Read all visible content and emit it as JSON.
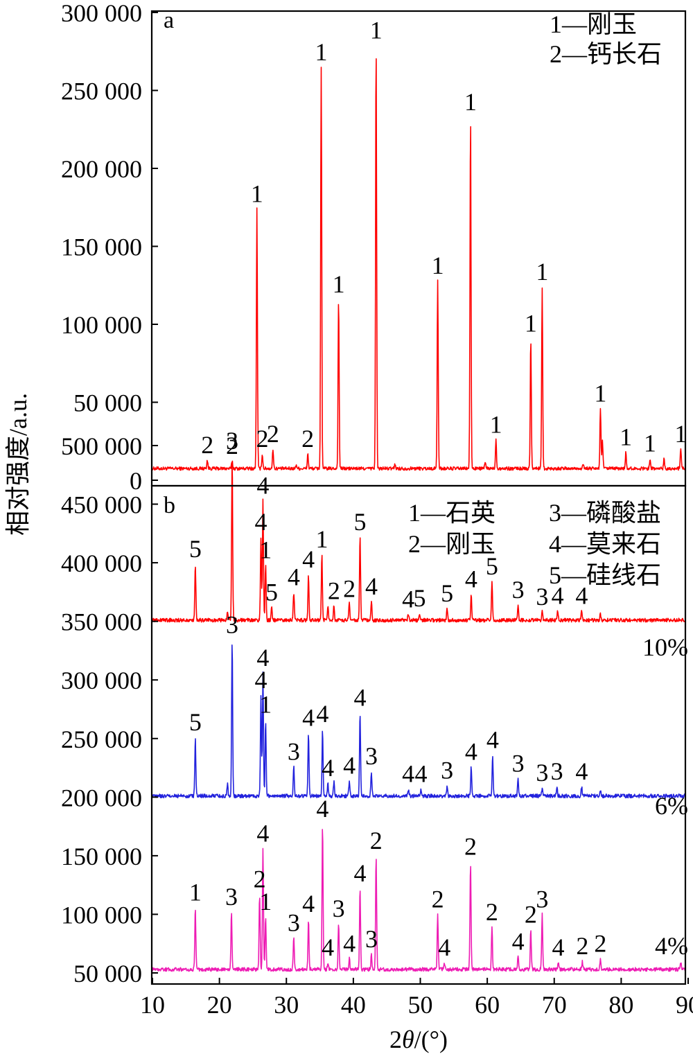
{
  "chart_data": [
    {
      "panel": "a",
      "type": "line",
      "xlim": [
        10,
        90
      ],
      "ylim": [
        0,
        300000
      ],
      "yticks": [
        0,
        50000,
        100000,
        150000,
        200000,
        250000,
        300000
      ],
      "ytick_labels": [
        "0",
        "50 000",
        "100 000",
        "150 000",
        "200 000",
        "250 000",
        "300 000"
      ],
      "legend": [
        "1—刚玉",
        "2—钙长石"
      ],
      "legend_position": "top-right",
      "series": [
        {
          "color": "#ff0000",
          "baseline": 7500,
          "peaks": [
            {
              "x": 18.2,
              "y": 13000,
              "label": "2"
            },
            {
              "x": 21.9,
              "y": 12500,
              "label": "2"
            },
            {
              "x": 25.6,
              "y": 174000,
              "label": "1"
            },
            {
              "x": 26.4,
              "y": 17000,
              "label": "2"
            },
            {
              "x": 28.0,
              "y": 20000,
              "label": "2"
            },
            {
              "x": 31.5,
              "y": 10000,
              "label": ""
            },
            {
              "x": 33.2,
              "y": 17000,
              "label": "2"
            },
            {
              "x": 35.2,
              "y": 265000,
              "label": "1"
            },
            {
              "x": 37.8,
              "y": 116000,
              "label": "1"
            },
            {
              "x": 43.4,
              "y": 279000,
              "label": "1"
            },
            {
              "x": 46.2,
              "y": 10500,
              "label": ""
            },
            {
              "x": 52.6,
              "y": 128000,
              "label": "1"
            },
            {
              "x": 57.5,
              "y": 233000,
              "label": "1"
            },
            {
              "x": 59.7,
              "y": 12000,
              "label": ""
            },
            {
              "x": 61.3,
              "y": 26000,
              "label": "1"
            },
            {
              "x": 66.5,
              "y": 91000,
              "label": "1"
            },
            {
              "x": 68.2,
              "y": 124000,
              "label": "1"
            },
            {
              "x": 74.3,
              "y": 11000,
              "label": ""
            },
            {
              "x": 76.9,
              "y": 46000,
              "label": "1"
            },
            {
              "x": 77.2,
              "y": 25000,
              "label": ""
            },
            {
              "x": 80.7,
              "y": 18000,
              "label": "1"
            },
            {
              "x": 84.3,
              "y": 14000,
              "label": "1"
            },
            {
              "x": 86.4,
              "y": 14000,
              "label": ""
            },
            {
              "x": 88.9,
              "y": 20000,
              "label": "1"
            }
          ]
        }
      ]
    },
    {
      "panel": "b",
      "type": "line",
      "xlim": [
        10,
        90
      ],
      "ylim": [
        50000,
        500000
      ],
      "yticks": [
        50000,
        100000,
        150000,
        200000,
        250000,
        300000,
        350000,
        400000,
        450000,
        500000
      ],
      "ytick_labels": [
        "50 000",
        "100 000",
        "150 000",
        "200 000",
        "250 000",
        "300 000",
        "350 000",
        "400 000",
        "450 000",
        "500 000"
      ],
      "xticks": [
        10,
        20,
        30,
        40,
        50,
        60,
        70,
        80,
        90
      ],
      "xlabel": "2θ/(°)",
      "legend": [
        "1—石英",
        "2—刚玉",
        "3—磷酸盐",
        "4—莫来石",
        "5—硅线石"
      ],
      "legend_position": "top-right",
      "series": [
        {
          "name": "10%",
          "color": "#ff0000",
          "baseline": 351000,
          "peaks": [
            {
              "x": 16.4,
              "y": 399000,
              "label": "5"
            },
            {
              "x": 21.2,
              "y": 358000,
              "label": ""
            },
            {
              "x": 21.9,
              "y": 491000,
              "label": "3"
            },
            {
              "x": 26.2,
              "y": 422000,
              "label": "4"
            },
            {
              "x": 26.5,
              "y": 453000,
              "label": "4"
            },
            {
              "x": 26.9,
              "y": 398000,
              "label": "1"
            },
            {
              "x": 27.8,
              "y": 362000,
              "label": "5"
            },
            {
              "x": 31.1,
              "y": 375000,
              "label": "4"
            },
            {
              "x": 33.3,
              "y": 390000,
              "label": "4"
            },
            {
              "x": 35.3,
              "y": 407000,
              "label": "1"
            },
            {
              "x": 36.2,
              "y": 364000,
              "label": ""
            },
            {
              "x": 37.1,
              "y": 363000,
              "label": "2"
            },
            {
              "x": 39.4,
              "y": 365000,
              "label": "2"
            },
            {
              "x": 41.0,
              "y": 422000,
              "label": "5"
            },
            {
              "x": 42.7,
              "y": 367000,
              "label": "4"
            },
            {
              "x": 48.2,
              "y": 356000,
              "label": "4"
            },
            {
              "x": 49.9,
              "y": 357000,
              "label": "5"
            },
            {
              "x": 54.0,
              "y": 361000,
              "label": "5"
            },
            {
              "x": 57.6,
              "y": 373000,
              "label": "4"
            },
            {
              "x": 60.7,
              "y": 384000,
              "label": "5"
            },
            {
              "x": 64.6,
              "y": 364000,
              "label": "3"
            },
            {
              "x": 68.2,
              "y": 358000,
              "label": "3"
            },
            {
              "x": 70.5,
              "y": 359000,
              "label": "4"
            },
            {
              "x": 74.1,
              "y": 359000,
              "label": "4"
            },
            {
              "x": 76.9,
              "y": 356000,
              "label": ""
            }
          ]
        },
        {
          "name": "6%",
          "color": "#2222dd",
          "baseline": 201000,
          "peaks": [
            {
              "x": 16.4,
              "y": 251000,
              "label": "5"
            },
            {
              "x": 21.2,
              "y": 211000,
              "label": ""
            },
            {
              "x": 21.9,
              "y": 334000,
              "label": "3"
            },
            {
              "x": 26.2,
              "y": 287000,
              "label": "4"
            },
            {
              "x": 26.5,
              "y": 306000,
              "label": "4"
            },
            {
              "x": 26.9,
              "y": 266000,
              "label": "1"
            },
            {
              "x": 31.1,
              "y": 226000,
              "label": "3"
            },
            {
              "x": 33.3,
              "y": 255000,
              "label": "4"
            },
            {
              "x": 35.4,
              "y": 258000,
              "label": "4"
            },
            {
              "x": 36.2,
              "y": 212000,
              "label": "4"
            },
            {
              "x": 37.1,
              "y": 213000,
              "label": ""
            },
            {
              "x": 39.4,
              "y": 214000,
              "label": "4"
            },
            {
              "x": 41.0,
              "y": 272000,
              "label": "4"
            },
            {
              "x": 42.7,
              "y": 222000,
              "label": "3"
            },
            {
              "x": 48.2,
              "y": 207000,
              "label": "4"
            },
            {
              "x": 50.1,
              "y": 207000,
              "label": "4"
            },
            {
              "x": 54.0,
              "y": 210000,
              "label": "3"
            },
            {
              "x": 57.6,
              "y": 226000,
              "label": "4"
            },
            {
              "x": 60.8,
              "y": 236000,
              "label": "4"
            },
            {
              "x": 64.6,
              "y": 216000,
              "label": "3"
            },
            {
              "x": 68.2,
              "y": 208000,
              "label": "3"
            },
            {
              "x": 70.4,
              "y": 209000,
              "label": "3"
            },
            {
              "x": 74.1,
              "y": 209000,
              "label": "4"
            },
            {
              "x": 76.9,
              "y": 206000,
              "label": ""
            }
          ]
        },
        {
          "name": "4%",
          "color": "#ee1cb4",
          "baseline": 53000,
          "peaks": [
            {
              "x": 16.4,
              "y": 106000,
              "label": "1"
            },
            {
              "x": 21.8,
              "y": 102000,
              "label": "3"
            },
            {
              "x": 26.0,
              "y": 117000,
              "label": "2"
            },
            {
              "x": 26.5,
              "y": 156000,
              "label": "4"
            },
            {
              "x": 26.9,
              "y": 98000,
              "label": "1"
            },
            {
              "x": 31.1,
              "y": 80000,
              "label": "3"
            },
            {
              "x": 33.3,
              "y": 96000,
              "label": "4"
            },
            {
              "x": 35.4,
              "y": 177000,
              "label": "4"
            },
            {
              "x": 36.2,
              "y": 59000,
              "label": "4"
            },
            {
              "x": 37.8,
              "y": 92000,
              "label": "3"
            },
            {
              "x": 39.4,
              "y": 62000,
              "label": "4"
            },
            {
              "x": 41.0,
              "y": 122000,
              "label": "4"
            },
            {
              "x": 42.7,
              "y": 66000,
              "label": "3"
            },
            {
              "x": 43.4,
              "y": 150000,
              "label": "2"
            },
            {
              "x": 52.6,
              "y": 100000,
              "label": "2"
            },
            {
              "x": 53.6,
              "y": 59000,
              "label": "4"
            },
            {
              "x": 57.5,
              "y": 145000,
              "label": "2"
            },
            {
              "x": 60.7,
              "y": 89000,
              "label": "2"
            },
            {
              "x": 64.6,
              "y": 64000,
              "label": "4"
            },
            {
              "x": 66.5,
              "y": 87000,
              "label": "2"
            },
            {
              "x": 68.2,
              "y": 100000,
              "label": "3"
            },
            {
              "x": 70.6,
              "y": 59000,
              "label": "4"
            },
            {
              "x": 74.2,
              "y": 60000,
              "label": "2"
            },
            {
              "x": 76.9,
              "y": 62000,
              "label": "2"
            },
            {
              "x": 88.9,
              "y": 59000,
              "label": ""
            }
          ]
        }
      ]
    }
  ],
  "ylabel": "相对强度/a.u."
}
